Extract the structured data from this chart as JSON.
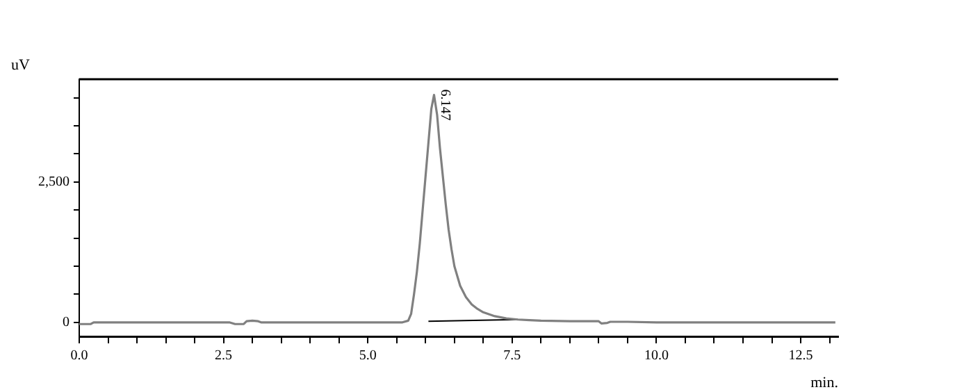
{
  "chart_data": {
    "type": "line",
    "xlabel": "min.",
    "ylabel": "uV",
    "xlim": [
      0,
      13.15
    ],
    "ylim": [
      -250,
      4330
    ],
    "xticks": [
      {
        "value": 0,
        "label": "0.0"
      },
      {
        "value": 0.5,
        "label": null
      },
      {
        "value": 1,
        "label": null
      },
      {
        "value": 1.5,
        "label": null
      },
      {
        "value": 2,
        "label": null
      },
      {
        "value": 2.5,
        "label": "2.5"
      },
      {
        "value": 3,
        "label": null
      },
      {
        "value": 3.5,
        "label": null
      },
      {
        "value": 4,
        "label": null
      },
      {
        "value": 4.5,
        "label": null
      },
      {
        "value": 5,
        "label": "5.0"
      },
      {
        "value": 5.5,
        "label": null
      },
      {
        "value": 6,
        "label": null
      },
      {
        "value": 6.5,
        "label": null
      },
      {
        "value": 7,
        "label": null
      },
      {
        "value": 7.5,
        "label": "7.5"
      },
      {
        "value": 8,
        "label": null
      },
      {
        "value": 8.5,
        "label": null
      },
      {
        "value": 9,
        "label": null
      },
      {
        "value": 9.5,
        "label": null
      },
      {
        "value": 10,
        "label": "10.0"
      },
      {
        "value": 10.5,
        "label": null
      },
      {
        "value": 11,
        "label": null
      },
      {
        "value": 11.5,
        "label": null
      },
      {
        "value": 12,
        "label": null
      },
      {
        "value": 12.5,
        "label": "12.5"
      },
      {
        "value": 13,
        "label": null
      }
    ],
    "yticks": [
      0,
      {
        "value": 500,
        "label": null
      },
      {
        "value": 1000,
        "label": null
      },
      {
        "value": 1500,
        "label": null
      },
      {
        "value": 2000,
        "label": null
      },
      {
        "value": 2500,
        "label": "2,500"
      },
      {
        "value": 3000,
        "label": null
      },
      {
        "value": 3500,
        "label": null
      },
      {
        "value": 4000,
        "label": null
      }
    ],
    "grid": false,
    "legend": false,
    "marker": "none",
    "line_style": "solid",
    "series": [
      {
        "color": "#808080",
        "x": [
          0,
          0.2,
          0.25,
          2.6,
          2.7,
          2.85,
          2.9,
          3.0,
          3.1,
          3.15,
          5.6,
          5.7,
          5.75,
          5.8,
          5.85,
          5.9,
          5.95,
          6.0,
          6.05,
          6.1,
          6.147,
          6.2,
          6.25,
          6.3,
          6.35,
          6.4,
          6.45,
          6.5,
          6.6,
          6.7,
          6.8,
          6.9,
          7.0,
          7.2,
          7.4,
          7.6,
          7.8,
          8.0,
          8.5,
          9.0,
          9.05,
          9.15,
          9.2,
          9.5,
          10,
          13.1
        ],
        "values": [
          -30,
          -30,
          0,
          0,
          -30,
          -30,
          20,
          30,
          20,
          0,
          0,
          30,
          150,
          500,
          900,
          1400,
          2000,
          2600,
          3200,
          3800,
          4050,
          3700,
          3100,
          2600,
          2100,
          1650,
          1300,
          1000,
          650,
          450,
          320,
          240,
          180,
          110,
          70,
          50,
          40,
          30,
          20,
          20,
          -20,
          -10,
          10,
          10,
          0,
          0
        ]
      },
      {
        "color": "#000000",
        "x": [
          6.05,
          7.6
        ],
        "values": [
          20,
          50
        ]
      }
    ],
    "annotations": [
      {
        "text": "6.147",
        "x": 6.147,
        "y": 4050
      }
    ]
  }
}
